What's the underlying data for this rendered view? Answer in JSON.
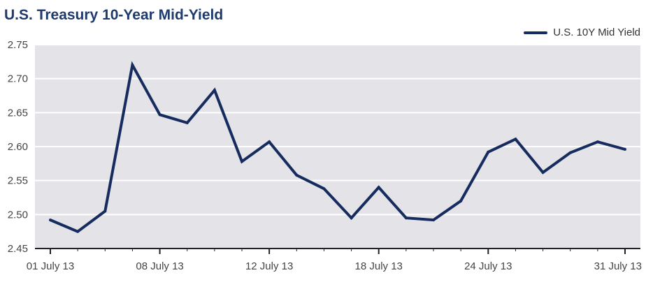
{
  "chart_data": {
    "type": "line",
    "title": "U.S. Treasury 10-Year Mid-Yield",
    "xlabel": "",
    "ylabel": "",
    "ylim": [
      2.45,
      2.75
    ],
    "y_ticks": [
      "2.45",
      "2.50",
      "2.55",
      "2.60",
      "2.65",
      "2.70",
      "2.75"
    ],
    "x_ticks": [
      "01 July 13",
      "08 July 13",
      "12 July 13",
      "18 July 13",
      "24 July 13",
      "31 July 13"
    ],
    "x_tick_indices": [
      0,
      4,
      8,
      12,
      16,
      21
    ],
    "x": [
      "01 July 13",
      "02 July 13",
      "03 July 13",
      "05 July 13",
      "08 July 13",
      "09 July 13",
      "10 July 13",
      "11 July 13",
      "12 July 13",
      "15 July 13",
      "16 July 13",
      "17 July 13",
      "18 July 13",
      "19 July 13",
      "22 July 13",
      "23 July 13",
      "24 July 13",
      "25 July 13",
      "26 July 13",
      "29 July 13",
      "30 July 13",
      "31 July 13"
    ],
    "series": [
      {
        "name": "U.S. 10Y Mid Yield",
        "color": "#162c5e",
        "values": [
          2.492,
          2.475,
          2.505,
          2.72,
          2.647,
          2.635,
          2.683,
          2.578,
          2.607,
          2.558,
          2.538,
          2.495,
          2.54,
          2.495,
          2.492,
          2.52,
          2.592,
          2.611,
          2.562,
          2.591,
          2.607,
          2.596
        ]
      }
    ],
    "grid": true,
    "legend_position": "top-right",
    "plot_background": "#e4e3e8"
  }
}
